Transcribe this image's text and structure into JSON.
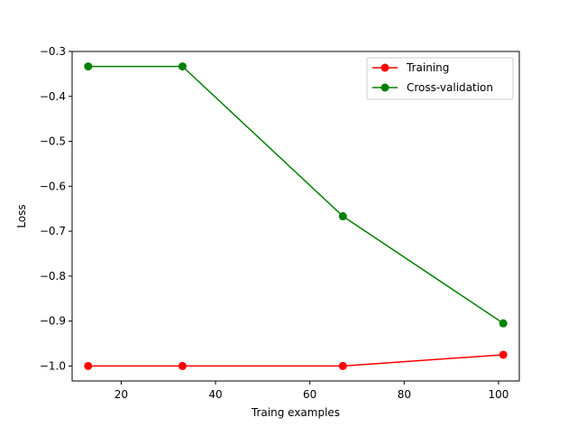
{
  "chart_data": {
    "type": "line",
    "title": "",
    "xlabel": "Traing examples",
    "ylabel": "Loss",
    "xlim": [
      9.6,
      104.4
    ],
    "ylim": [
      -1.0333,
      -0.3
    ],
    "xticks": [
      20,
      40,
      60,
      80,
      100
    ],
    "yticks": [
      -1.0,
      -0.9,
      -0.8,
      -0.7,
      -0.6,
      -0.5,
      -0.4,
      -0.3
    ],
    "xtick_labels": [
      "20",
      "40",
      "60",
      "80",
      "100"
    ],
    "ytick_labels": [
      "−1.0",
      "−0.9",
      "−0.8",
      "−0.7",
      "−0.6",
      "−0.5",
      "−0.4",
      "−0.3"
    ],
    "grid": false,
    "legend_position": "top-right",
    "series": [
      {
        "name": "Training",
        "color": "#ff0000",
        "x": [
          13,
          33,
          67,
          101
        ],
        "y": [
          -1.0,
          -1.0,
          -1.0,
          -0.975
        ]
      },
      {
        "name": "Cross-validation",
        "color": "#008000",
        "x": [
          13,
          33,
          67,
          101
        ],
        "y": [
          -0.3333,
          -0.3333,
          -0.6667,
          -0.905
        ]
      }
    ]
  }
}
